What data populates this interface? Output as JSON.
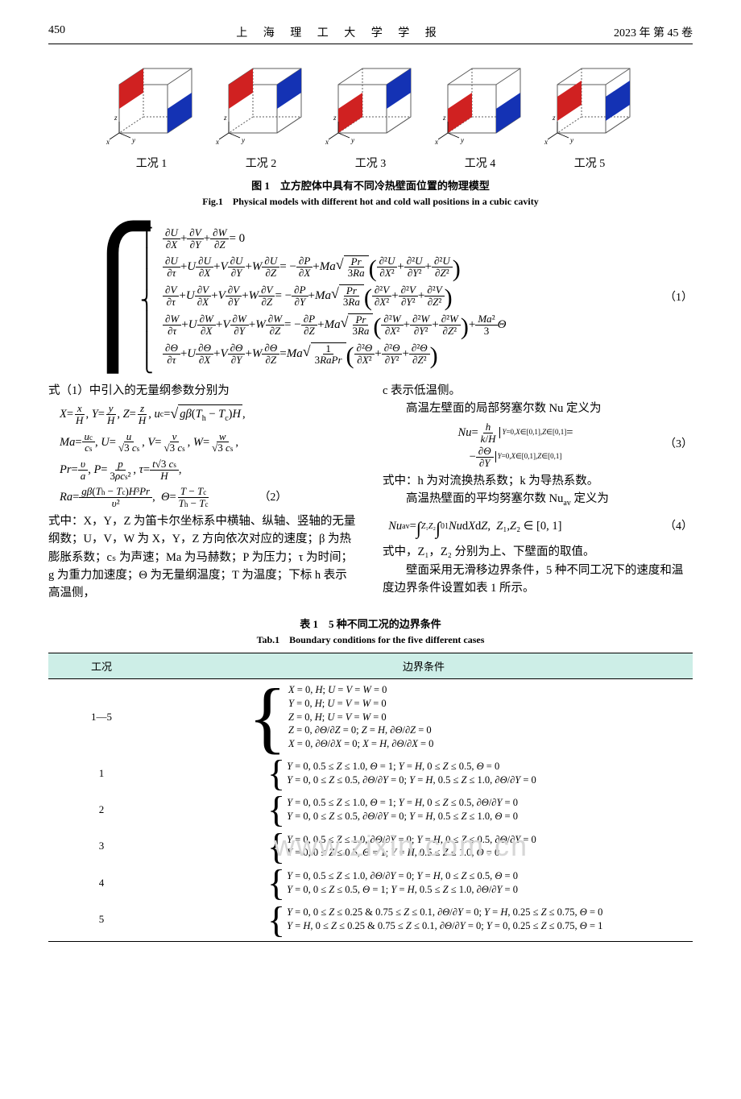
{
  "header": {
    "page_no": "450",
    "journal": "上 海 理 工 大 学 学 报",
    "issue": "2023 年 第 45 卷"
  },
  "fig1": {
    "labels": [
      "工况 1",
      "工况 2",
      "工况 3",
      "工况 4",
      "工况 5"
    ],
    "caption_zh": "图 1　立方腔体中具有不同冷热壁面位置的物理模型",
    "caption_en": "Fig.1　Physical models with different hot and cold wall positions in a cubic cavity",
    "hot_color": "#d02121",
    "cold_color": "#1432b4",
    "edge_color": "#5c5c5c",
    "axis_labels": [
      "x",
      "y",
      "z"
    ],
    "hot_cold_faces": [
      {
        "hot": "L-top",
        "cold": "R-bot"
      },
      {
        "hot": "L-top",
        "cold": "R-top"
      },
      {
        "hot": "L-bot",
        "cold": "R-top"
      },
      {
        "hot": "L-bot",
        "cold": "R-bot"
      },
      {
        "hot": "L-mid",
        "cold": "R-mid"
      }
    ]
  },
  "eq1_no": "（1）",
  "para_intro": "式（1）中引入的无量纲参数分别为",
  "eq2_no": "（2）",
  "left_para": "式中：X，Y，Z 为笛卡尔坐标系中横轴、纵轴、竖轴的无量纲数；U，V，W 为 X，Y，Z 方向依次对应的速度；β 为热膨胀系数；cₛ 为声速；Ma 为马赫数；P 为压力；τ 为时间；g 为重力加速度；Θ 为无量纲温度；T 为温度；下标 h 表示高温侧，",
  "right_para1": "c 表示低温侧。",
  "right_para2": "高温左壁面的局部努塞尔数 Nu 定义为",
  "eq3_no": "（3）",
  "right_para3": "式中：h 为对流换热系数；k 为导热系数。",
  "right_para4": "高温热壁面的平均努塞尔数 Nu",
  "right_para4b": " 定义为",
  "eq4_no": "（4）",
  "right_para5": "式中，Z₁，Z₂ 分别为上、下壁面的取值。",
  "right_para6": "壁面采用无滑移边界条件，5 种不同工况下的速度和温度边界条件设置如表 1 所示。",
  "tab1": {
    "caption_zh": "表 1　5 种不同工况的边界条件",
    "caption_en": "Tab.1　Boundary conditions for the five different cases",
    "head": [
      "工况",
      "边界条件"
    ],
    "header_bg": "#cdeee7",
    "rows": [
      {
        "case": "1—5",
        "lines": [
          "X = 0, H;  U = V = W = 0",
          "Y = 0, H;  U = V = W = 0",
          "Z = 0, H;  U = V = W = 0",
          "Z = 0,  ∂Θ/∂Z = 0;  Z = H,  ∂Θ/∂Z = 0",
          "X = 0,  ∂Θ/∂X = 0;  X = H,  ∂Θ/∂X = 0"
        ],
        "brace": "large"
      },
      {
        "case": "1",
        "lines": [
          "Y = 0,  0.5 ≤ Z ≤ 1.0,  Θ = 1;  Y = H,  0 ≤ Z ≤ 0.5,  Θ = 0",
          "Y = 0,  0 ≤ Z ≤ 0.5,  ∂Θ/∂Y = 0;  Y = H,  0.5 ≤ Z ≤ 1.0,  ∂Θ/∂Y = 0"
        ]
      },
      {
        "case": "2",
        "lines": [
          "Y = 0,  0.5 ≤ Z ≤ 1.0, Θ = 1;  Y = H,  0 ≤ Z ≤ 0.5,  ∂Θ/∂Y = 0",
          "Y = 0,  0 ≤ Z ≤ 0.5,  ∂Θ/∂Y = 0;  Y = H,  0.5 ≤ Z ≤ 1.0,  Θ = 0"
        ]
      },
      {
        "case": "3",
        "lines": [
          "Y = 0,  0.5 ≤ Z ≤ 1.0, ∂Θ/∂Y = 0;  Y = H,  0 ≤ Z ≤ 0.5,  ∂Θ/∂Y = 0",
          "Y = 0,  0 ≤ Z ≤ 0.5,  Θ = 1;  Y = H,  0.5 ≤ Z ≤ 1.0,  Θ = 0"
        ]
      },
      {
        "case": "4",
        "lines": [
          "Y = 0,  0.5 ≤ Z ≤ 1.0,  ∂Θ/∂Y = 0;  Y = H,  0 ≤ Z ≤ 0.5,  Θ = 0",
          "Y = 0,  0 ≤ Z ≤ 0.5,  Θ = 1;  Y = H,  0.5 ≤ Z ≤ 1.0,  ∂Θ/∂Y = 0"
        ]
      },
      {
        "case": "5",
        "lines": [
          "Y = 0,  0 ≤ Z ≤ 0.25  &  0.75 ≤ Z ≤ 0.1,  ∂Θ/∂Y = 0;   Y = H,  0.25 ≤ Z ≤ 0.75,  Θ = 0",
          "Y = H,  0 ≤ Z ≤ 0.25  &  0.75 ≤ Z ≤ 0.1,  ∂Θ/∂Y = 0;   Y = 0,  0.25 ≤ Z ≤ 0.75,  Θ = 1"
        ]
      }
    ]
  },
  "watermark": "www.zixin.com.cn"
}
